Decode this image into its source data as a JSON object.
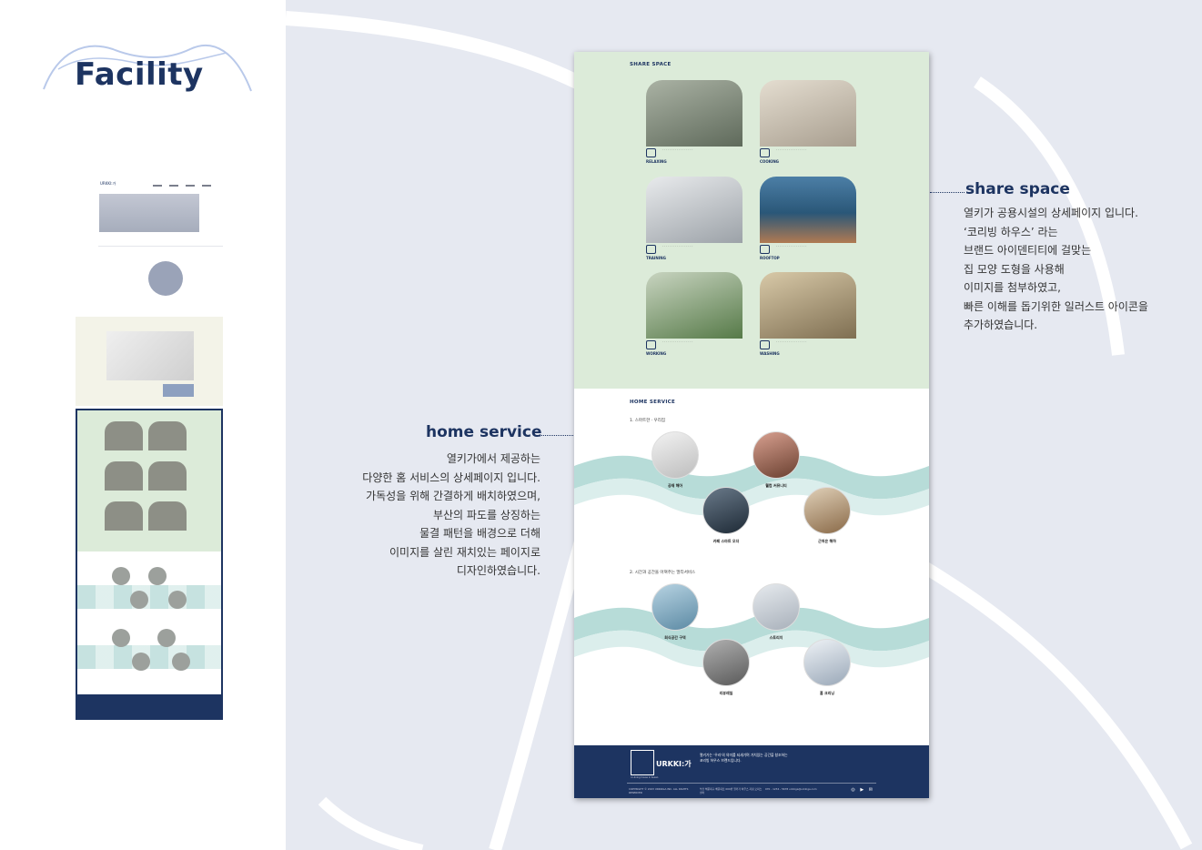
{
  "page": {
    "title": "Facility"
  },
  "annotations": {
    "share": {
      "title": "share space",
      "lines": [
        "열키가 공용시설의 상세페이지 입니다.",
        "‘코리빙 하우스’ 라는",
        "브랜드 아이덴티티에 걸맞는",
        "집 모양 도형을 사용해",
        "이미지를 첨부하였고,",
        "빠른 이해를 돕기위한 일러스트 아이콘을",
        "추가하였습니다."
      ]
    },
    "home": {
      "title": "home service",
      "lines": [
        "열키가에서 제공하는",
        "다양한 홈 서비스의 상세페이지 입니다.",
        "가독성을 위해 간결하게 배치하였으며,",
        "부산의 파도를 상징하는",
        "물결 패턴을 배경으로 더해",
        "이미지를 살린 재치있는 페이지로",
        "디자인하였습니다."
      ]
    }
  },
  "mockup": {
    "share_label": "SHARE SPACE",
    "cards": [
      {
        "label": "RELAXING",
        "color": "#7b8378"
      },
      {
        "label": "COOKING",
        "color": "#c9c1b3"
      },
      {
        "label": "TRAINING",
        "color": "#c8ccd0"
      },
      {
        "label": "ROOFTOP",
        "color": "#2f6d91"
      },
      {
        "label": "WORKING",
        "color": "#6d8f5f"
      },
      {
        "label": "WASHING",
        "color": "#a89878"
      }
    ],
    "home_label": "HOME SERVICE",
    "home_sub1": "1. 스마트한 · 우리집",
    "home_sub2": "2. 시간과 공간을 아껴주는 멀티서비스",
    "services": [
      {
        "name": "공재 해아",
        "color": "#d9d9d9"
      },
      {
        "name": "웰컴 커뮤니티",
        "color": "#b86a58"
      },
      {
        "name": "카페 스마트 오더",
        "color": "#3e4e5e"
      },
      {
        "name": "근처은 해하",
        "color": "#c7a98a"
      },
      {
        "name": "회식공간 구역",
        "color": "#8fb3c9"
      },
      {
        "name": "스토리지",
        "color": "#c9cfd6"
      },
      {
        "name": "리뷰레일",
        "color": "#8b8b8b"
      },
      {
        "name": "홈 크리닝",
        "color": "#d4dbe4"
      }
    ],
    "footer": {
      "brand": "URKKI:가",
      "tagline": "co-living house in busan",
      "text": "열키가는 '우리'의 의미를 되새기며 가치있는 공간을 창조하는 코리빙 하우스 브랜드입니다.",
      "copyright": "COPYRIGHT © 2023 URKKIGA INC. ALL RIGHTS RESERVED",
      "address": "부산 해운대구 해운대로 000번 열키가 하우스 지점 오피스센터",
      "contact": "070 - 1234 - 5678 urkkiga@urkkiga.com",
      "social": "◎ ▶ ✉"
    }
  },
  "thumb": {
    "brand": "URKKI:가"
  }
}
